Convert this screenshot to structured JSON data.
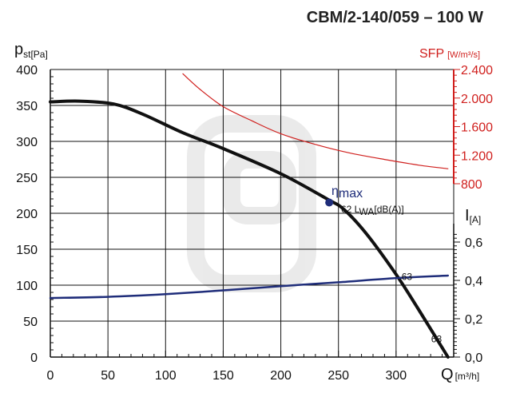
{
  "chart_data": {
    "type": "line",
    "title": "CBM/2-140/059 – 100 W",
    "x_axis": {
      "label": "Q",
      "unit": "[m³/h]",
      "range": [
        0,
        350
      ],
      "ticks": [
        0,
        50,
        100,
        150,
        200,
        250,
        300
      ],
      "minor_step": 10
    },
    "y_axis_left": {
      "label": "p",
      "label_sub": "st[Pa]",
      "range": [
        0,
        400
      ],
      "ticks": [
        0,
        50,
        100,
        150,
        200,
        250,
        300,
        350,
        400
      ]
    },
    "y_axis_right_sfp": {
      "label": "SFP",
      "unit": "[W/m³/s]",
      "range": [
        800,
        2400
      ],
      "ticks": [
        800,
        1200,
        1600,
        2000,
        2400
      ],
      "tick_labels": [
        "800",
        "1.200",
        "1.600",
        "2.000",
        "2.400"
      ],
      "color": "#d0201e"
    },
    "y_axis_right_current": {
      "label": "I",
      "unit": "[A]",
      "range": [
        0,
        0.7
      ],
      "ticks": [
        0,
        0.2,
        0.4,
        0.6
      ],
      "tick_labels": [
        "0,0",
        "0,2",
        "0,4",
        "0,6"
      ]
    },
    "grid": true,
    "series": [
      {
        "axis": "left",
        "color": "#111111",
        "points": [
          [
            0,
            355
          ],
          [
            25,
            356
          ],
          [
            55,
            352
          ],
          [
            80,
            338
          ],
          [
            115,
            312
          ],
          [
            150,
            290
          ],
          [
            200,
            255
          ],
          [
            240,
            220
          ],
          [
            255,
            205
          ],
          [
            275,
            170
          ],
          [
            300,
            115
          ],
          [
            320,
            65
          ],
          [
            345,
            0
          ]
        ]
      },
      {
        "axis": "sfp",
        "color": "#d0201e",
        "points": [
          [
            115,
            2340
          ],
          [
            130,
            2120
          ],
          [
            150,
            1880
          ],
          [
            175,
            1680
          ],
          [
            200,
            1500
          ],
          [
            230,
            1350
          ],
          [
            260,
            1230
          ],
          [
            290,
            1140
          ],
          [
            320,
            1060
          ],
          [
            345,
            1010
          ]
        ]
      },
      {
        "axis": "current",
        "color": "#1f2d7a",
        "points": [
          [
            0,
            0.308
          ],
          [
            50,
            0.314
          ],
          [
            100,
            0.328
          ],
          [
            150,
            0.348
          ],
          [
            200,
            0.37
          ],
          [
            250,
            0.39
          ],
          [
            300,
            0.412
          ],
          [
            345,
            0.425
          ]
        ]
      }
    ],
    "annotations": {
      "eta_point": [
        242,
        215
      ],
      "eta_symbol": "η",
      "eta_text": "max",
      "lwa_text": "62 L",
      "lwa_sub": "WA",
      "lwa_unit": "[dB(A)]",
      "label_63a": "63",
      "label_63a_at": [
        302,
        105
      ],
      "label_63b": "63",
      "label_63b_at": [
        336,
        25
      ]
    }
  }
}
